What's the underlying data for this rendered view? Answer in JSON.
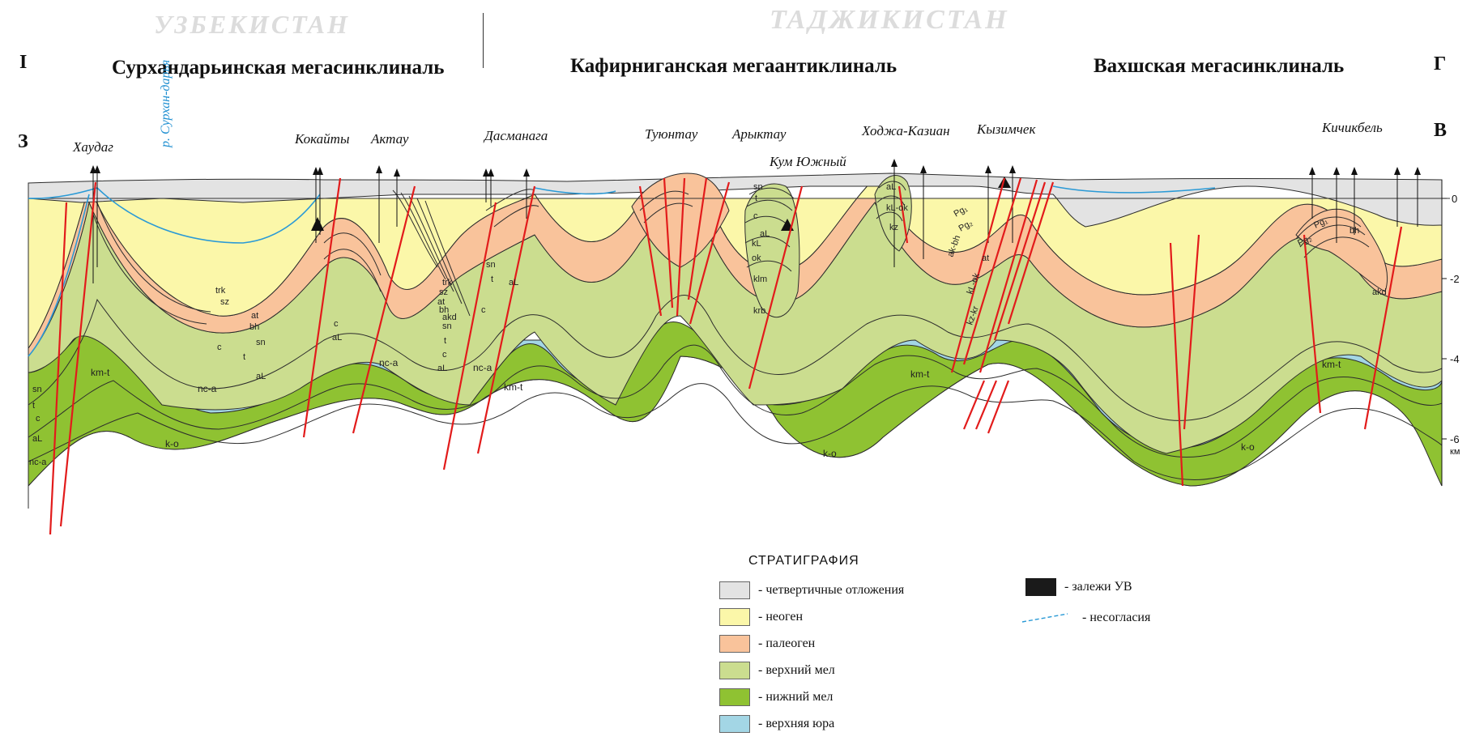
{
  "header": {
    "country_left": "УЗБЕКИСТАН",
    "country_right": "ТАДЖИКИСТАН",
    "marker_left_top": "I",
    "marker_right_top": "Г",
    "marker_left": "З",
    "marker_right": "В",
    "regions": [
      "Сурхандарьинская мегасинклиналь",
      "Кафирниганская мегаантиклиналь",
      "Вахшская мегасинклиналь"
    ]
  },
  "places": [
    "Хаудаг",
    "Кокайты",
    "Актау",
    "Дасманага",
    "Туюнтау",
    "Арыктау",
    "Кум Южный",
    "Ходжа-Казиан",
    "Кызимчек",
    "Кичикбель"
  ],
  "river": "р. Сурхан-дарья",
  "depth_axis": {
    "ticks": [
      "0",
      "-2",
      "-4",
      "-6"
    ],
    "unit": "км"
  },
  "layer_labels": {
    "km_t": "km-t",
    "nc_a": "nc-a",
    "k_o": "k-o",
    "trk": "trk",
    "sz": "sz",
    "at": "at",
    "bh": "bh",
    "sn": "sn",
    "t": "t",
    "c": "c",
    "al": "aL",
    "akd": "akd",
    "kl": "kL",
    "ok": "ok",
    "klm": "klm",
    "krb": "krb",
    "kz": "kz",
    "kl_ok": "kL-ok",
    "kz_kr": "kz-kr",
    "ak_bh": "ak-bh",
    "pg2": "Pg₂",
    "pg1": "Pg₁"
  },
  "legend": {
    "title": "СТРАТИГРАФИЯ",
    "items": [
      {
        "label": "- четвертичные отложения",
        "color": "#e3e3e3"
      },
      {
        "label": "- неоген",
        "color": "#fbf7a9"
      },
      {
        "label": "- палеоген",
        "color": "#f9c39b"
      },
      {
        "label": "- верхний мел",
        "color": "#cbdd8f"
      },
      {
        "label": "- нижний мел",
        "color": "#8fc232"
      },
      {
        "label": "- верхняя юра",
        "color": "#a3d6e5"
      }
    ],
    "deposit_label": "- залежи УВ",
    "unconformity_label": "- несогласия"
  },
  "colors": {
    "quaternary": "#e3e3e3",
    "neogene": "#fbf7a9",
    "paleogene": "#f9c39b",
    "upper_cretaceous": "#cbdd8f",
    "lower_cretaceous": "#8fc232",
    "upper_jurassic": "#a3d6e5",
    "fault": "#e21b1b",
    "unconformity": "#2a9ad6"
  }
}
